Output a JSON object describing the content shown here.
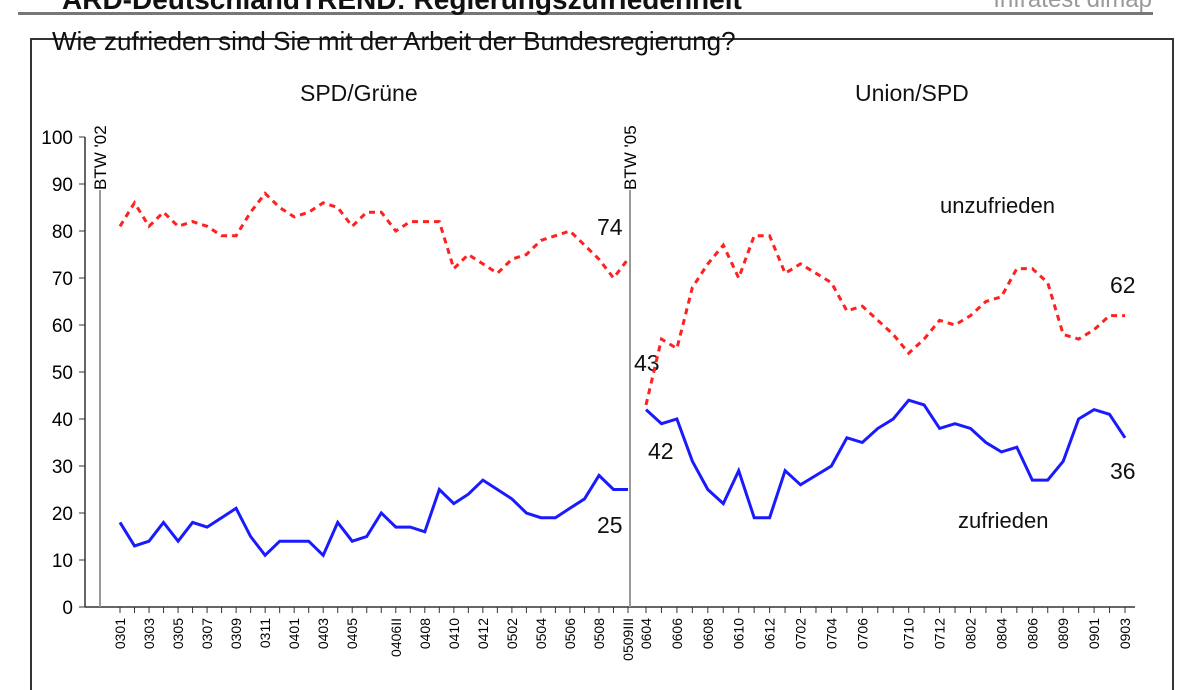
{
  "header": {
    "title": "ARD-DeutschlandTREND: Regierungszufriedenheit",
    "source": "Infratest dimap"
  },
  "chart_data": {
    "type": "line",
    "title": "Wie zufrieden sind Sie mit der Arbeit der Bundesregierung?",
    "ylim": [
      0,
      100
    ],
    "yticks": [
      0,
      10,
      20,
      30,
      40,
      50,
      60,
      70,
      80,
      90,
      100
    ],
    "grid": false,
    "panels": [
      {
        "name": "SPD/Grüne",
        "marker_label": "BTW '02",
        "xlabels": [
          "0301",
          "0303",
          "0305",
          "0307",
          "0309",
          "0311",
          "0401",
          "0403",
          "0405",
          "0406II",
          "0408",
          "0410",
          "0412",
          "0502",
          "0504",
          "0506",
          "0508",
          "0509III"
        ],
        "series": [
          {
            "name": "unzufrieden",
            "color": "#ff2020",
            "dash": true,
            "values": [
              81,
              86,
              81,
              84,
              81,
              82,
              81,
              79,
              79,
              84,
              88,
              85,
              83,
              84,
              86,
              85,
              81,
              84,
              84,
              80,
              82,
              82,
              82,
              72,
              75,
              73,
              71,
              74,
              75,
              78,
              79,
              80,
              77,
              74,
              70,
              74
            ],
            "end_label": "74"
          },
          {
            "name": "zufrieden",
            "color": "#1a1aff",
            "dash": false,
            "values": [
              18,
              13,
              14,
              18,
              14,
              18,
              17,
              19,
              21,
              15,
              11,
              14,
              14,
              14,
              11,
              18,
              14,
              15,
              20,
              17,
              17,
              16,
              25,
              22,
              24,
              27,
              25,
              23,
              20,
              19,
              19,
              21,
              23,
              28,
              25,
              25
            ],
            "end_label": "25"
          }
        ]
      },
      {
        "name": "Union/SPD",
        "marker_label": "BTW '05",
        "xlabels": [
          "0604",
          "0606",
          "0608",
          "0610",
          "0612",
          "0702",
          "0704",
          "0706",
          "0710",
          "0712",
          "0802",
          "0804",
          "0806",
          "0809",
          "0901",
          "0903"
        ],
        "series": [
          {
            "name": "unzufrieden",
            "color": "#ff2020",
            "dash": true,
            "values": [
              43,
              57,
              55,
              68,
              73,
              77,
              70,
              79,
              79,
              71,
              73,
              71,
              69,
              63,
              64,
              61,
              58,
              54,
              57,
              61,
              60,
              62,
              65,
              66,
              72,
              72,
              69,
              58,
              57,
              59,
              62,
              62
            ],
            "start_label": "43",
            "end_label": "62"
          },
          {
            "name": "zufrieden",
            "color": "#1a1aff",
            "dash": false,
            "values": [
              42,
              39,
              40,
              31,
              25,
              22,
              29,
              19,
              19,
              29,
              26,
              28,
              30,
              36,
              35,
              38,
              40,
              44,
              43,
              38,
              39,
              38,
              35,
              33,
              34,
              27,
              27,
              31,
              40,
              42,
              41,
              36
            ],
            "start_label": "42",
            "end_label": "36"
          }
        ]
      }
    ],
    "legend": {
      "unzufrieden": "unzufrieden",
      "zufrieden": "zufrieden"
    }
  }
}
